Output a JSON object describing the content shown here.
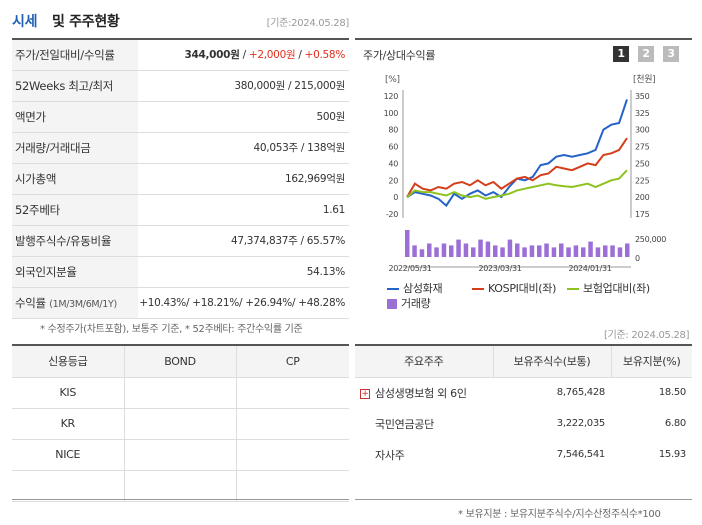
{
  "header": {
    "title_colored": "시세",
    "title_rest": "및 주주현황",
    "date": "[기준:2024.05.28]"
  },
  "info_rows": [
    {
      "label": "주가/전일대비/수익률",
      "value_parts": [
        "344,000원",
        " / ",
        "+2,000원",
        " / ",
        "+0.58%"
      ]
    },
    {
      "label": "52Weeks 최고/최저",
      "value": "380,000원 / 215,000원"
    },
    {
      "label": "액면가",
      "value": "500원"
    },
    {
      "label": "거래량/거래대금",
      "value": "40,053주 / 138억원"
    },
    {
      "label": "시가총액",
      "value": "162,969억원"
    },
    {
      "label": "52주베타",
      "value": "1.61"
    },
    {
      "label": "발행주식수/유동비율",
      "value": "47,374,837주 / 65.57%"
    },
    {
      "label": "외국인지분율",
      "value": "54.13%"
    },
    {
      "label": "수익률",
      "label_small": "(1M/3M/6M/1Y)",
      "value": "+10.43%/ +18.21%/ +26.94%/ +48.28%"
    }
  ],
  "note_left": "* 수정주가(차트포함), 보통주 기준, * 52주베타: 주간수익률 기준",
  "chart_panel": {
    "title": "주가/상대수익률",
    "pages": [
      "1",
      "2",
      "3"
    ],
    "left_unit": "[%]",
    "right_unit": "[천원]",
    "volume_label": "250,000"
  },
  "chart_data": {
    "type": "line",
    "x_ticks": [
      "2022/05/31",
      "2023/03/31",
      "2024/01/31"
    ],
    "y_left_ticks": [
      "120",
      "100",
      "80",
      "60",
      "40",
      "20",
      "0",
      "-20"
    ],
    "y_right_ticks": [
      "350",
      "325",
      "300",
      "275",
      "250",
      "225",
      "200",
      "175"
    ],
    "ylim_left": [
      -20,
      120
    ],
    "series": [
      {
        "name": "삼성화재",
        "color": "#2563c9",
        "values": [
          0,
          6,
          4,
          2,
          -2,
          -10,
          4,
          -2,
          4,
          8,
          2,
          6,
          0,
          12,
          22,
          20,
          24,
          38,
          40,
          48,
          50,
          48,
          50,
          52,
          56,
          80,
          86,
          88,
          116
        ]
      },
      {
        "name": "KOSPI대비(좌)",
        "color": "#d43f1a",
        "values": [
          0,
          16,
          10,
          8,
          12,
          10,
          16,
          18,
          14,
          20,
          14,
          18,
          10,
          16,
          22,
          24,
          20,
          26,
          28,
          36,
          34,
          32,
          36,
          40,
          38,
          50,
          52,
          56,
          70
        ]
      },
      {
        "name": "보험업대비(좌)",
        "color": "#8dc21f",
        "values": [
          0,
          8,
          6,
          6,
          4,
          2,
          6,
          2,
          0,
          2,
          -2,
          0,
          2,
          4,
          8,
          10,
          12,
          14,
          16,
          14,
          13,
          12,
          14,
          16,
          12,
          16,
          20,
          22,
          32
        ]
      }
    ],
    "volume": [
      14,
      6,
      4,
      7,
      5,
      7,
      6,
      9,
      7,
      5,
      9,
      8,
      6,
      5,
      9,
      7,
      5,
      6,
      6,
      7,
      5,
      7,
      5,
      6,
      5,
      8,
      5,
      6,
      6,
      5,
      7
    ],
    "volume_name": "거래량",
    "volume_color": "#9b6fd6"
  },
  "date2": "[기준: 2024.05.28]",
  "credit": {
    "headers": [
      "신용등급",
      "BOND",
      "CP"
    ],
    "rows": [
      [
        "KIS",
        "",
        ""
      ],
      [
        "KR",
        "",
        ""
      ],
      [
        "NICE",
        "",
        ""
      ],
      [
        "",
        "",
        ""
      ]
    ]
  },
  "holders": {
    "headers": [
      "주요주주",
      "보유주식수(보통)",
      "보유지분(%)"
    ],
    "rows": [
      {
        "name": "삼성생명보험 외 6인",
        "shares": "8,765,428",
        "pct": "18.50",
        "expand": "+"
      },
      {
        "name": "국민연금공단",
        "shares": "3,222,035",
        "pct": "6.80"
      },
      {
        "name": "자사주",
        "shares": "7,546,541",
        "pct": "15.93"
      }
    ]
  },
  "note_right": "* 보유지분 : 보유지분주식수/지수산정주식수*100"
}
